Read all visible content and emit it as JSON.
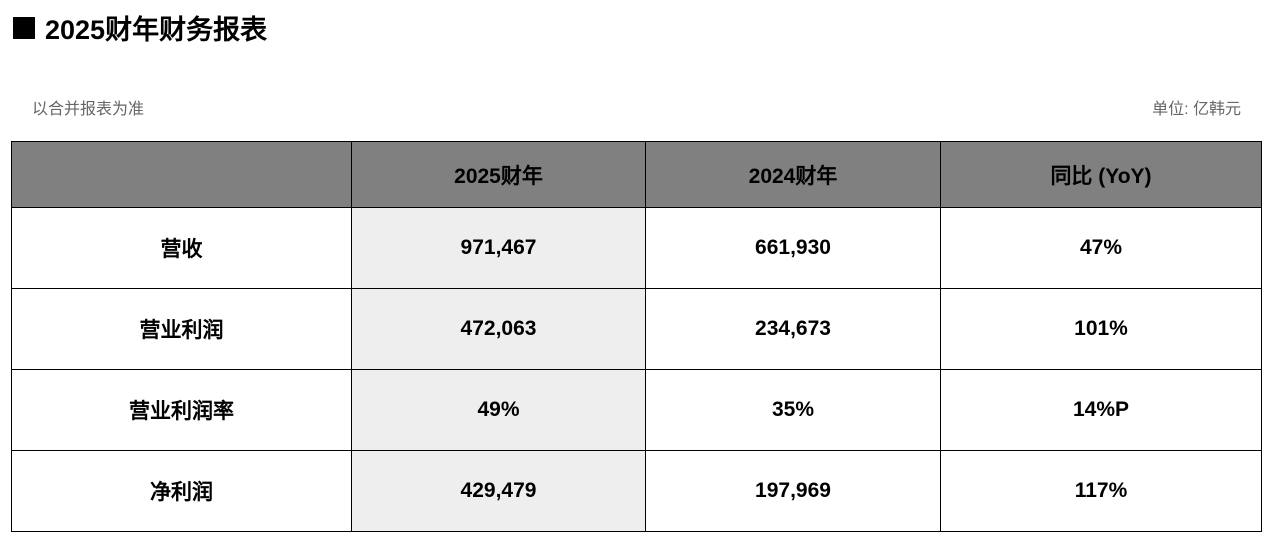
{
  "title": "2025财年财务报表",
  "note": "以合并报表为准",
  "unit": "单位: 亿韩元",
  "colors": {
    "header_bg": "#808080",
    "highlight_col_bg": "#eeeeee"
  },
  "table": {
    "headers": [
      "",
      "2025财年",
      "2024财年",
      "同比 (YoY)"
    ],
    "rows": [
      [
        "营收",
        "971,467",
        "661,930",
        "47%"
      ],
      [
        "营业利润",
        "472,063",
        "234,673",
        "101%"
      ],
      [
        "营业利润率",
        "49%",
        "35%",
        "14%P"
      ],
      [
        "净利润",
        "429,479",
        "197,969",
        "117%"
      ]
    ]
  }
}
